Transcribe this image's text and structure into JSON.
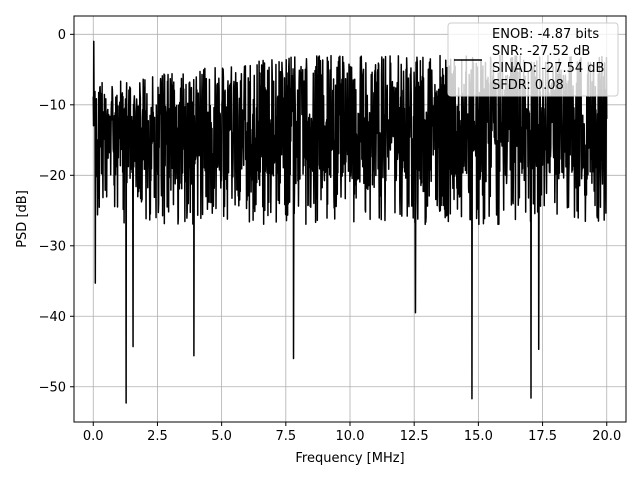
{
  "chart_data": {
    "type": "line",
    "title": "",
    "xlabel": "Frequency [MHz]",
    "ylabel": "PSD [dB]",
    "xlim": [
      -0.75,
      20.75
    ],
    "ylim": [
      -55,
      2.6
    ],
    "xticks": [
      0.0,
      2.5,
      5.0,
      7.5,
      10.0,
      12.5,
      15.0,
      17.5,
      20.0
    ],
    "xtick_labels": [
      "0.0",
      "2.5",
      "5.0",
      "7.5",
      "10.0",
      "12.5",
      "15.0",
      "17.5",
      "20.0"
    ],
    "yticks": [
      0,
      -10,
      -20,
      -30,
      -40,
      -50
    ],
    "ytick_labels": [
      "0",
      "−10",
      "−20",
      "−30",
      "−40",
      "−50"
    ],
    "grid": true,
    "legend_position": "top-right",
    "line_color": "#000000",
    "series": [
      {
        "name": "ENOB: -4.87 bits\nSNR: -27.52 dB\nSINAD: -27.54 dB\nSFDR: 0.08",
        "description_values": {
          "band_mean_db": -15,
          "band_upper_db": -3,
          "band_lower_db": -27
        },
        "notable_points": [
          {
            "x": 0.02,
            "y": -1.0
          },
          {
            "x": 0.08,
            "y": -35.3
          },
          {
            "x": 1.28,
            "y": -52.3
          },
          {
            "x": 1.55,
            "y": -44.3
          },
          {
            "x": 3.92,
            "y": -45.6
          },
          {
            "x": 7.8,
            "y": -46.0
          },
          {
            "x": 12.55,
            "y": -39.5
          },
          {
            "x": 14.75,
            "y": -51.7
          },
          {
            "x": 17.05,
            "y": -51.6
          },
          {
            "x": 17.35,
            "y": -44.7
          },
          {
            "x": 20.0,
            "y": -12.0
          }
        ]
      }
    ],
    "legend_lines": [
      "ENOB: -4.87 bits",
      "SNR: -27.52 dB",
      "SINAD: -27.54 dB",
      "SFDR: 0.08"
    ]
  }
}
